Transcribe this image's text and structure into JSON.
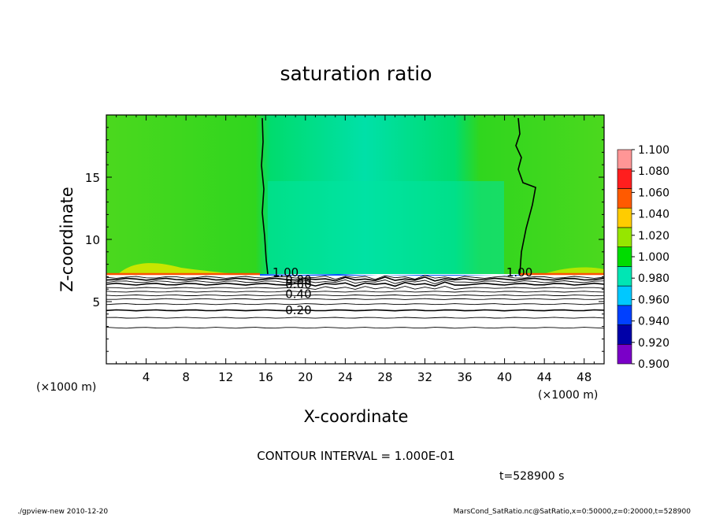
{
  "chart_data": {
    "type": "heatmap",
    "title": "saturation ratio",
    "xlabel": "X-coordinate",
    "ylabel": "Z-coordinate",
    "x_unit_left": "(×1000 m)",
    "x_unit_right": "(×1000 m)",
    "xlim": [
      0,
      50
    ],
    "ylim": [
      0,
      20
    ],
    "x_ticks": [
      4,
      8,
      12,
      16,
      20,
      24,
      28,
      32,
      36,
      40,
      44,
      48
    ],
    "y_ticks": [
      5,
      10,
      15
    ],
    "colorbar": {
      "levels": [
        0.9,
        0.92,
        0.94,
        0.96,
        0.98,
        1.0,
        1.02,
        1.04,
        1.06,
        1.08,
        1.1
      ],
      "labels": [
        "0.900",
        "0.920",
        "0.940",
        "0.960",
        "0.980",
        "1.000",
        "1.020",
        "1.040",
        "1.060",
        "1.080",
        "1.100"
      ],
      "colors": [
        "#7a00c8",
        "#0000a8",
        "#0040ff",
        "#00c8ff",
        "#00e6b4",
        "#00dc00",
        "#96e600",
        "#ffcc00",
        "#ff5a00",
        "#ff1e1e",
        "#ff9696"
      ]
    },
    "contour_labels": [
      {
        "text": "1.00",
        "x": 18.0,
        "y": 7.35
      },
      {
        "text": "0.80",
        "x": 19.3,
        "y": 6.75
      },
      {
        "text": "0.60",
        "x": 19.3,
        "y": 6.4
      },
      {
        "text": "0.40",
        "x": 19.3,
        "y": 5.6
      },
      {
        "text": "0.20",
        "x": 19.3,
        "y": 4.3
      },
      {
        "text": "1.00",
        "x": 41.5,
        "y": 7.35
      }
    ],
    "cloud_top_z": 7.2,
    "contour_interval_text": "CONTOUR INTERVAL = 1.000E-01",
    "time_text": "t=528900 s"
  },
  "footer": {
    "left": "./gpview-new   2010-12-20",
    "right": "MarsCond_SatRatio.nc@SatRatio,x=0:50000,z=0:20000,t=528900"
  }
}
